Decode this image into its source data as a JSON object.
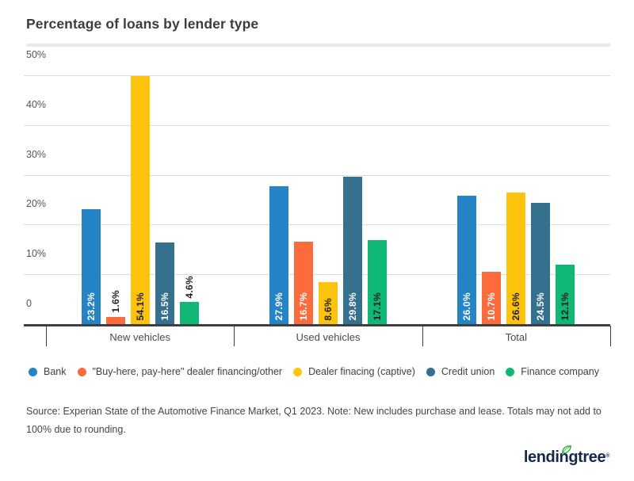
{
  "title": "Percentage of loans by lender type",
  "chart_data": {
    "type": "bar",
    "categories": [
      "New vehicles",
      "Used vehicles",
      "Total"
    ],
    "series": [
      {
        "name": "Bank",
        "color": "#2484c6",
        "label_color": "#ffffff",
        "values": [
          23.2,
          27.9,
          26.0
        ]
      },
      {
        "name": "\"Buy-here, pay-here\" dealer financing/other",
        "color": "#fb6b3b",
        "label_color": "#ffffff",
        "values": [
          1.6,
          16.7,
          10.7
        ]
      },
      {
        "name": "Dealer finacing (captive)",
        "color": "#fec40d",
        "label_color": "#1f1f1f",
        "values": [
          54.1,
          8.6,
          26.6
        ]
      },
      {
        "name": "Credit union",
        "color": "#35708e",
        "label_color": "#ffffff",
        "values": [
          16.5,
          29.8,
          24.5
        ]
      },
      {
        "name": "Finance company",
        "color": "#10b875",
        "label_color": "#1f1f1f",
        "values": [
          4.6,
          17.1,
          12.1
        ]
      }
    ],
    "ylim": [
      0,
      50
    ],
    "yticks": [
      {
        "value": 0,
        "label": "0"
      },
      {
        "value": 10,
        "label": "10%"
      },
      {
        "value": 20,
        "label": "20%"
      },
      {
        "value": 30,
        "label": "30%"
      },
      {
        "value": 40,
        "label": "40%"
      },
      {
        "value": 50,
        "label": "50%"
      }
    ],
    "grid": true,
    "legend_position": "bottom",
    "value_suffix": "%"
  },
  "source_note": "Source: Experian State of the Automotive Finance Market, Q1 2023. Note: New includes purchase and lease. Totals may not add to 100% due to rounding.",
  "logo": {
    "text": "lendingtree",
    "leaf_color": "#33b848",
    "text_color": "#16294c"
  }
}
